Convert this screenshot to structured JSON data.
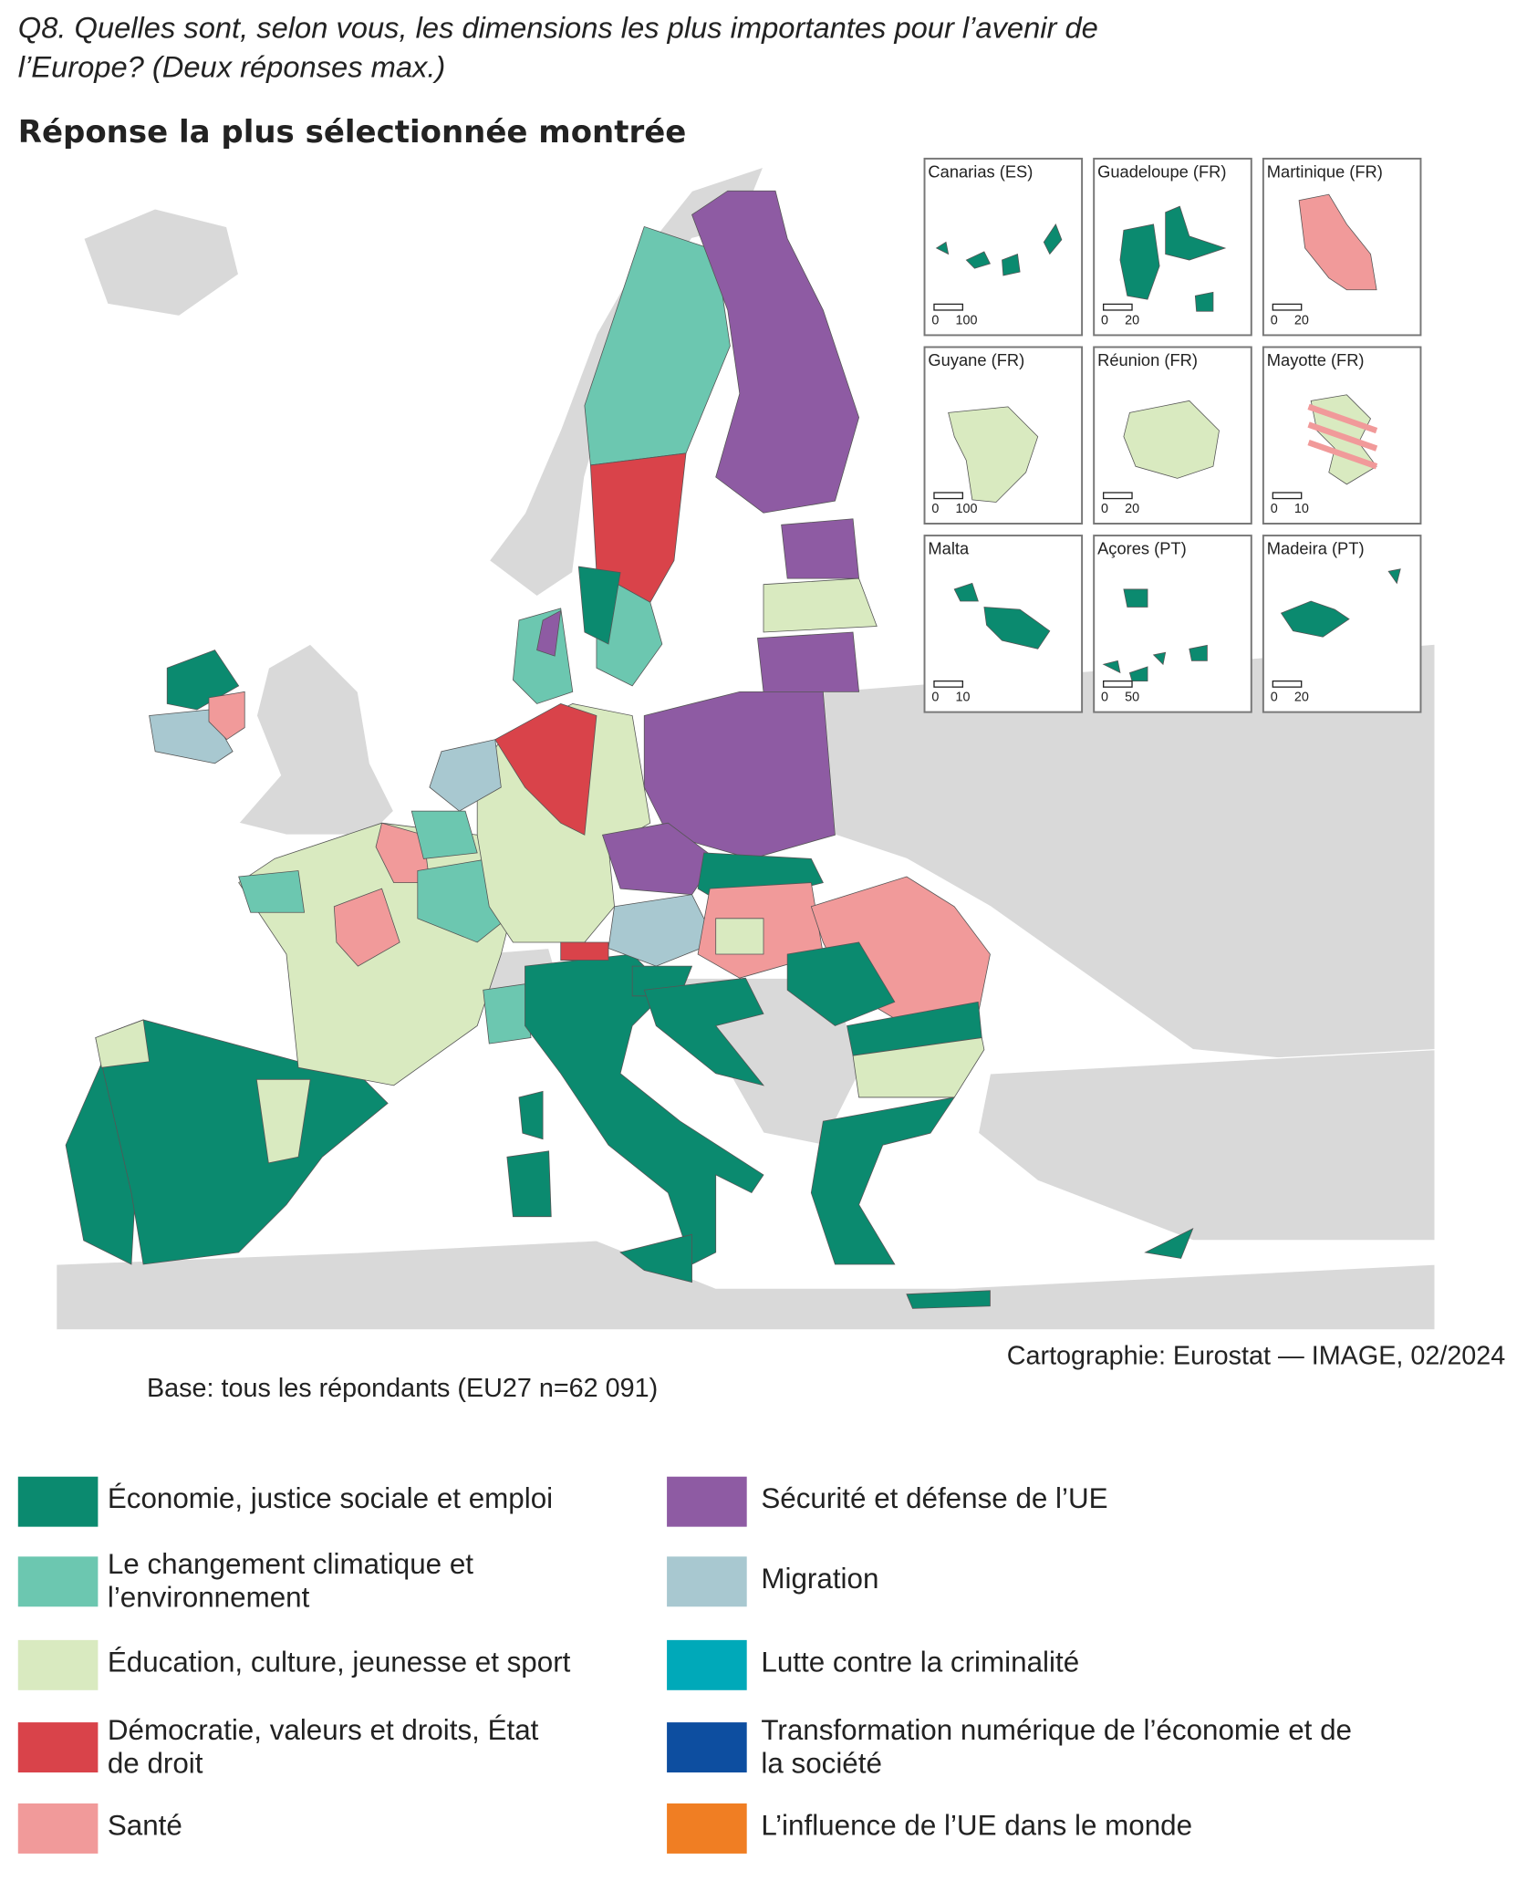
{
  "header": {
    "title": [
      "Q8. Quelles sont, selon vous, les dimensions les plus importantes pour l’avenir de",
      "l’Europe? (Deux réponses max.)"
    ],
    "subtitle": "Réponse la plus sélectionnée montrée"
  },
  "insets": [
    {
      "label": "Canarias (ES)",
      "scale": [
        "0",
        "100"
      ]
    },
    {
      "label": "Guadeloupe (FR)",
      "scale": [
        "0",
        "20"
      ]
    },
    {
      "label": "Martinique (FR)",
      "scale": [
        "0",
        "20"
      ]
    },
    {
      "label": "Guyane (FR)",
      "scale": [
        "0",
        "100"
      ]
    },
    {
      "label": "Réunion (FR)",
      "scale": [
        "0",
        "20"
      ]
    },
    {
      "label": "Mayotte (FR)",
      "scale": [
        "0",
        "10"
      ]
    },
    {
      "label": "Malta",
      "scale": [
        "0",
        "10"
      ]
    },
    {
      "label": "Açores (PT)",
      "scale": [
        "0",
        "50"
      ]
    },
    {
      "label": "Madeira (PT)",
      "scale": [
        "0",
        "20"
      ]
    }
  ],
  "credit": "Cartographie: Eurostat — IMAGE, 02/2024",
  "base": "Base: tous les répondants (EU27 n=62 091)",
  "legend": [
    {
      "lines": [
        "Économie, justice sociale et emploi"
      ],
      "color": "#0b8a6f"
    },
    {
      "lines": [
        "Le changement climatique et",
        "l’environnement"
      ],
      "color": "#6cc7b0"
    },
    {
      "lines": [
        "Éducation, culture, jeunesse et sport"
      ],
      "color": "#d9eac0"
    },
    {
      "lines": [
        "Démocratie, valeurs et droits, État",
        "de droit"
      ],
      "color": "#d9434a"
    },
    {
      "lines": [
        "Santé"
      ],
      "color": "#f19a9a"
    },
    {
      "lines": [
        "Sécurité et défense de l’UE"
      ],
      "color": "#8e5ba3"
    },
    {
      "lines": [
        "Migration"
      ],
      "color": "#a8c8d0"
    },
    {
      "lines": [
        "Lutte contre la criminalité"
      ],
      "color": "#00a9b9"
    },
    {
      "lines": [
        "Transformation numérique de l’économie et de",
        "la société"
      ],
      "color": "#0d4ea0"
    },
    {
      "lines": [
        "L’influence de l’UE dans le monde"
      ],
      "color": "#f07e23"
    }
  ]
}
